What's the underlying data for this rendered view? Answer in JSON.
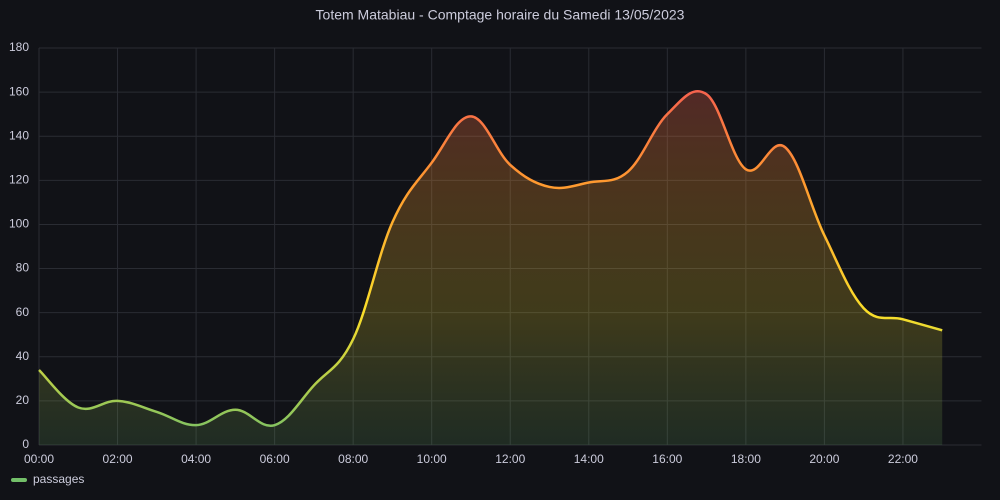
{
  "chart_data": {
    "type": "line",
    "title": "Totem Matabiau - Comptage horaire du Samedi 13/05/2023",
    "categories": [
      "00:00",
      null,
      "02:00",
      null,
      "04:00",
      null,
      "06:00",
      null,
      "08:00",
      null,
      "10:00",
      null,
      "12:00",
      null,
      "14:00",
      null,
      "16:00",
      null,
      "18:00",
      null,
      "20:00",
      null,
      "22:00",
      null
    ],
    "series": [
      {
        "name": "passages",
        "color": "#73bf69",
        "values": [
          34,
          17,
          20,
          15,
          9,
          16,
          9,
          27,
          48,
          101,
          128,
          149,
          127,
          117,
          119,
          124,
          150,
          159,
          125,
          135,
          95,
          62,
          57,
          52
        ]
      }
    ],
    "color_scale": [
      "#73bf69",
      "#fade2a",
      "#ff9830",
      "#f2495c"
    ],
    "ylim": [
      0,
      180
    ],
    "yticks": [
      0,
      20,
      40,
      60,
      80,
      100,
      120,
      140,
      160,
      180
    ],
    "grid": true,
    "legend": "bottom-left"
  }
}
